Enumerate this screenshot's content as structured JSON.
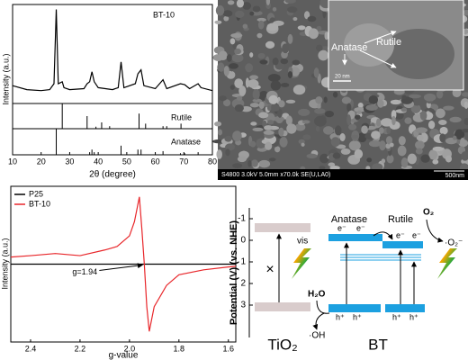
{
  "chart_data": [
    {
      "type": "line",
      "ylabel": "Intensity (a.u.)",
      "xlim": [
        10,
        80
      ],
      "ylim": [
        0,
        100
      ],
      "series": [
        {
          "name": "BT-10",
          "color": "#000000",
          "x": [
            10,
            15,
            20,
            23,
            24.5,
            25.3,
            26,
            27.4,
            28,
            30,
            35,
            36.1,
            37,
            37.8,
            38.6,
            40,
            45,
            47,
            48,
            49,
            53,
            53.9,
            55,
            56,
            60,
            62.7,
            64,
            68.8,
            70.3,
            72,
            75,
            76,
            80
          ],
          "values": [
            18,
            14,
            13,
            14,
            20,
            95,
            20,
            22,
            16,
            14,
            15,
            20,
            22,
            32,
            22,
            16,
            14,
            16,
            42,
            16,
            20,
            30,
            34,
            18,
            15,
            24,
            15,
            20,
            19,
            15,
            20,
            16,
            13
          ]
        }
      ]
    },
    {
      "type": "stem",
      "xlim": [
        10,
        80
      ],
      "ylim": [
        0,
        100
      ],
      "series": [
        {
          "name": "Rutile",
          "color": "#000000",
          "x": [
            27.4,
            36.1,
            39.2,
            41.2,
            44.0,
            54.3,
            56.6,
            62.7,
            64.0,
            69.0
          ],
          "values": [
            100,
            50,
            8,
            25,
            10,
            60,
            20,
            10,
            10,
            20
          ]
        }
      ]
    },
    {
      "type": "stem",
      "xlabel": "2θ (degree)",
      "xlim": [
        10,
        80
      ],
      "ylim": [
        0,
        100
      ],
      "xticks": [
        10,
        20,
        30,
        40,
        50,
        60,
        70,
        80
      ],
      "series": [
        {
          "name": "Anatase",
          "color": "#000000",
          "x": [
            25.3,
            37.0,
            37.8,
            38.6,
            48.0,
            53.9,
            55.0,
            62.7,
            68.8,
            70.3,
            75.0
          ],
          "values": [
            100,
            10,
            20,
            10,
            35,
            20,
            20,
            14,
            6,
            6,
            10
          ]
        }
      ]
    },
    {
      "type": "line",
      "ylabel": "Intensity (a.u.)",
      "xlabel": "g-value",
      "xlim": [
        2.48,
        1.57
      ],
      "ylim": [
        -1.1,
        1.1
      ],
      "xticks": [
        2.4,
        2.2,
        {
          "value": 2,
          "label": "2.0"
        },
        1.8,
        1.6
      ],
      "annotation": "g=1.94",
      "series": [
        {
          "name": "P25",
          "color": "#000000",
          "x": [
            2.48,
            1.57
          ],
          "values": [
            0,
            0
          ]
        },
        {
          "name": "BT-10",
          "color": "#e8262a",
          "x": [
            2.48,
            2.4,
            2.3,
            2.2,
            2.1,
            2.05,
            2.0,
            1.98,
            1.96,
            1.95,
            1.94,
            1.93,
            1.92,
            1.9,
            1.85,
            1.8,
            1.7,
            1.6,
            1.57
          ],
          "values": [
            0.1,
            0.12,
            0.15,
            0.12,
            0.2,
            0.25,
            0.4,
            0.6,
            0.95,
            0.5,
            0,
            -0.6,
            -0.95,
            -0.6,
            -0.3,
            -0.15,
            -0.08,
            -0.04,
            -0.03
          ]
        }
      ]
    }
  ],
  "sem": {
    "inset_labels": {
      "rutile": "Rutile",
      "anatase": "Anatase",
      "scale": "20 nm"
    },
    "info": "S4800 3.0kV 5.0mm x70.0k SE(U,LA0)",
    "scale": "500nm"
  },
  "band_diagram": {
    "ylabel": "Potential (V) (vs. NHE)",
    "ylim": [
      -1.5,
      4.5
    ],
    "yticks": [
      -1,
      0,
      1,
      2,
      3
    ],
    "tio2_label": "TiO₂",
    "bt_label": "BT",
    "forbidden": "×",
    "vis": "vis",
    "anatase": "Anatase",
    "rutile": "Rutile",
    "electrons": [
      "e⁻",
      "e⁻",
      "e⁻",
      "e⁻"
    ],
    "holes": [
      "h⁺",
      "h⁺",
      "h⁺",
      "h⁺"
    ],
    "o2": "O₂",
    "superoxide": "·O₂⁻",
    "h2o": "H₂O",
    "hydroxyl": "·OH"
  }
}
